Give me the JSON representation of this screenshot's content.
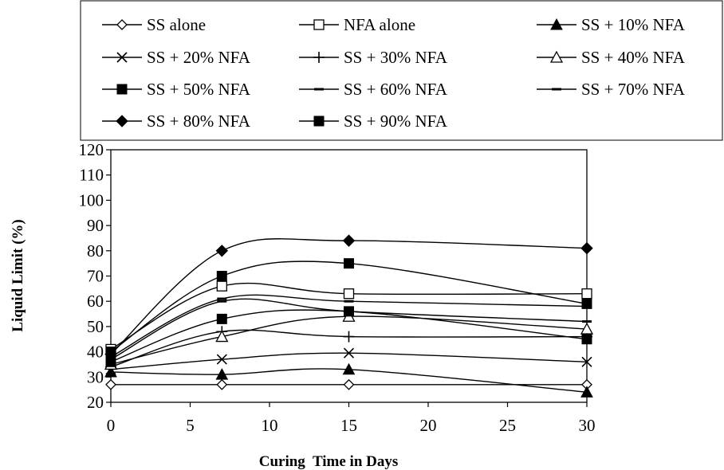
{
  "chart_data": {
    "type": "line",
    "title": "",
    "xlabel": "Curing  Time in Days",
    "ylabel": "Liquid Limit (%)",
    "xlim": [
      0,
      30
    ],
    "ylim": [
      20,
      120
    ],
    "xticks": [
      0,
      5,
      10,
      15,
      20,
      25,
      30
    ],
    "yticks": [
      20,
      30,
      40,
      50,
      60,
      70,
      80,
      90,
      100,
      110,
      120
    ],
    "grid": false,
    "legend_position": "top",
    "series": [
      {
        "name": "SS alone",
        "marker": "diamond-open",
        "x": [
          0,
          7,
          15,
          30
        ],
        "y": [
          27,
          27,
          27,
          27
        ]
      },
      {
        "name": "NFA alone",
        "marker": "square-open",
        "x": [
          0,
          7,
          15,
          30
        ],
        "y": [
          41,
          66,
          63,
          63
        ]
      },
      {
        "name": "SS + 10% NFA",
        "marker": "triangle-filled",
        "x": [
          0,
          7,
          15,
          30
        ],
        "y": [
          32,
          31,
          33,
          24
        ]
      },
      {
        "name": "SS + 20% NFA",
        "marker": "x",
        "x": [
          0,
          7,
          15,
          30
        ],
        "y": [
          33,
          37,
          39.5,
          36
        ]
      },
      {
        "name": "SS + 30% NFA",
        "marker": "plus",
        "x": [
          0,
          7,
          15,
          30
        ],
        "y": [
          34,
          48,
          46,
          46
        ]
      },
      {
        "name": "SS + 40% NFA",
        "marker": "triangle-open",
        "x": [
          0,
          7,
          15,
          30
        ],
        "y": [
          35,
          46,
          54,
          49
        ]
      },
      {
        "name": "SS + 50% NFA",
        "marker": "square-filled",
        "x": [
          0,
          7,
          15,
          30
        ],
        "y": [
          36,
          53,
          56,
          45
        ]
      },
      {
        "name": "SS + 60% NFA",
        "marker": "dash",
        "x": [
          0,
          7,
          15,
          30
        ],
        "y": [
          37,
          60,
          56,
          52
        ]
      },
      {
        "name": "SS + 70% NFA",
        "marker": "dash",
        "x": [
          0,
          7,
          15,
          30
        ],
        "y": [
          38,
          61,
          60,
          58
        ]
      },
      {
        "name": "SS + 80% NFA",
        "marker": "diamond-filled",
        "x": [
          0,
          7,
          15,
          30
        ],
        "y": [
          39,
          80,
          84,
          81
        ]
      },
      {
        "name": "SS + 90% NFA",
        "marker": "square-filled",
        "x": [
          0,
          7,
          15,
          30
        ],
        "y": [
          40,
          70,
          75,
          59
        ]
      }
    ]
  }
}
